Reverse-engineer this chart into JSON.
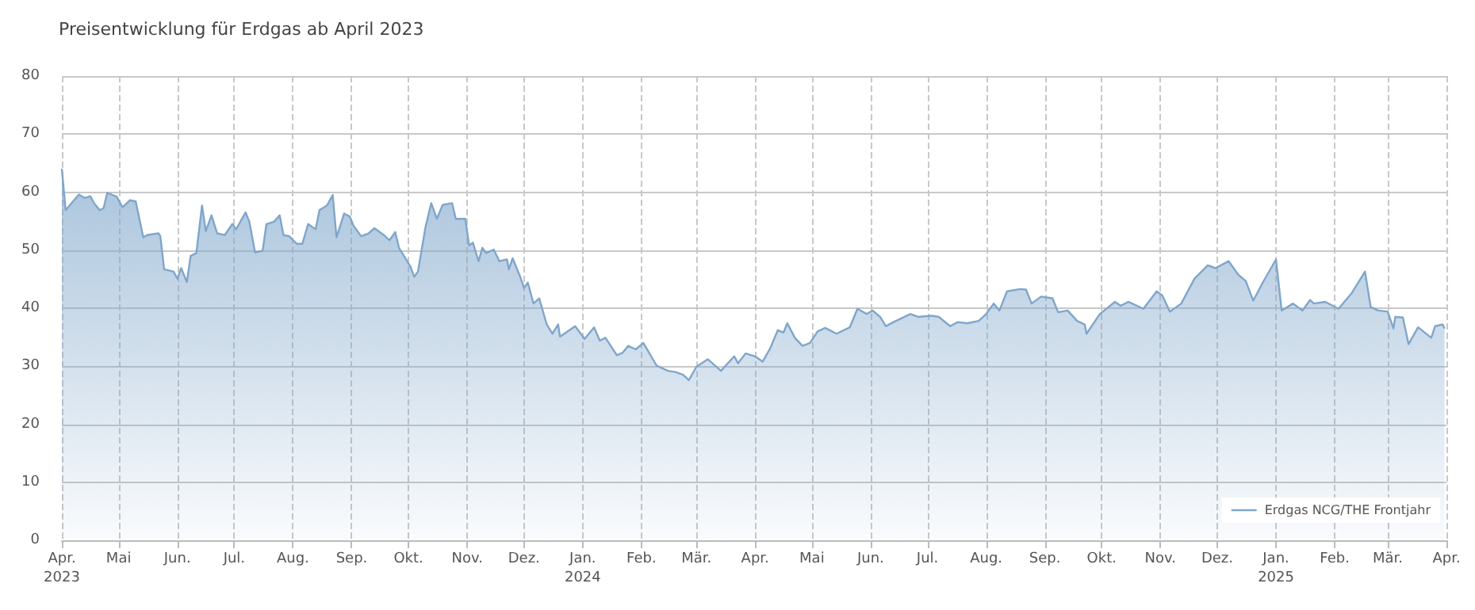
{
  "chart_data": {
    "type": "area",
    "title": "Preisentwicklung für Erdgas ab April 2023",
    "x": [
      "2023-04-01",
      "2023-04-03",
      "2023-04-10",
      "2023-04-13",
      "2023-04-16",
      "2023-04-18",
      "2023-04-21",
      "2023-04-23",
      "2023-04-25",
      "2023-04-30",
      "2023-05-03",
      "2023-05-07",
      "2023-05-10",
      "2023-05-14",
      "2023-05-16",
      "2023-05-22",
      "2023-05-23",
      "2023-05-25",
      "2023-05-30",
      "2023-06-01",
      "2023-06-03",
      "2023-06-06",
      "2023-06-08",
      "2023-06-11",
      "2023-06-14",
      "2023-06-16",
      "2023-06-19",
      "2023-06-22",
      "2023-06-26",
      "2023-06-30",
      "2023-07-02",
      "2023-07-07",
      "2023-07-09",
      "2023-07-12",
      "2023-07-16",
      "2023-07-18",
      "2023-07-22",
      "2023-07-25",
      "2023-07-27",
      "2023-07-30",
      "2023-08-03",
      "2023-08-06",
      "2023-08-09",
      "2023-08-13",
      "2023-08-15",
      "2023-08-19",
      "2023-08-22",
      "2023-08-24",
      "2023-08-28",
      "2023-08-31",
      "2023-09-02",
      "2023-09-06",
      "2023-09-10",
      "2023-09-13",
      "2023-09-18",
      "2023-09-21",
      "2023-09-24",
      "2023-09-26",
      "2023-10-02",
      "2023-10-04",
      "2023-10-06",
      "2023-10-10",
      "2023-10-13",
      "2023-10-16",
      "2023-10-19",
      "2023-10-24",
      "2023-10-26",
      "2023-10-31",
      "2023-11-02",
      "2023-11-04",
      "2023-11-07",
      "2023-11-09",
      "2023-11-11",
      "2023-11-15",
      "2023-11-18",
      "2023-11-22",
      "2023-11-23",
      "2023-11-25",
      "2023-11-29",
      "2023-12-01",
      "2023-12-03",
      "2023-12-06",
      "2023-12-09",
      "2023-12-13",
      "2023-12-16",
      "2023-12-19",
      "2023-12-20",
      "2023-12-28",
      "2024-01-02",
      "2024-01-07",
      "2024-01-10",
      "2024-01-13",
      "2024-01-19",
      "2024-01-22",
      "2024-01-25",
      "2024-01-29",
      "2024-02-02",
      "2024-02-09",
      "2024-02-15",
      "2024-02-19",
      "2024-02-23",
      "2024-02-26",
      "2024-03-01",
      "2024-03-07",
      "2024-03-14",
      "2024-03-17",
      "2024-03-21",
      "2024-03-23",
      "2024-03-27",
      "2024-04-01",
      "2024-04-05",
      "2024-04-09",
      "2024-04-13",
      "2024-04-16",
      "2024-04-18",
      "2024-04-22",
      "2024-04-26",
      "2024-04-30",
      "2024-05-04",
      "2024-05-08",
      "2024-05-14",
      "2024-05-21",
      "2024-05-25",
      "2024-05-30",
      "2024-06-02",
      "2024-06-06",
      "2024-06-09",
      "2024-06-13",
      "2024-06-22",
      "2024-06-26",
      "2024-07-03",
      "2024-07-07",
      "2024-07-13",
      "2024-07-17",
      "2024-07-22",
      "2024-07-28",
      "2024-08-01",
      "2024-08-05",
      "2024-08-08",
      "2024-08-12",
      "2024-08-19",
      "2024-08-22",
      "2024-08-25",
      "2024-08-30",
      "2024-09-05",
      "2024-09-08",
      "2024-09-13",
      "2024-09-18",
      "2024-09-22",
      "2024-09-23",
      "2024-09-30",
      "2024-10-08",
      "2024-10-11",
      "2024-10-15",
      "2024-10-23",
      "2024-10-30",
      "2024-11-02",
      "2024-11-06",
      "2024-11-12",
      "2024-11-19",
      "2024-11-26",
      "2024-11-30",
      "2024-12-07",
      "2024-12-12",
      "2024-12-16",
      "2024-12-20",
      "2024-12-25",
      "2025-01-01",
      "2025-01-04",
      "2025-01-10",
      "2025-01-15",
      "2025-01-19",
      "2025-01-21",
      "2025-01-27",
      "2025-02-03",
      "2025-02-10",
      "2025-02-17",
      "2025-02-20",
      "2025-02-24",
      "2025-03-01",
      "2025-03-04",
      "2025-03-05",
      "2025-03-09",
      "2025-03-12",
      "2025-03-17",
      "2025-03-24",
      "2025-03-26",
      "2025-03-30",
      "2025-03-31"
    ],
    "series": [
      {
        "name": "Erdgas NCG/THE Frontjahr",
        "color": "#7fa6cb",
        "values": [
          64.0,
          56.9,
          59.6,
          59.0,
          59.3,
          58.1,
          56.9,
          57.2,
          59.9,
          59.2,
          57.4,
          58.6,
          58.4,
          52.2,
          52.6,
          52.9,
          52.4,
          46.7,
          46.3,
          45.1,
          46.9,
          44.5,
          49.0,
          49.5,
          57.7,
          53.3,
          56.0,
          52.9,
          52.6,
          54.5,
          53.6,
          56.5,
          54.9,
          49.6,
          49.9,
          54.5,
          54.9,
          56.0,
          52.6,
          52.4,
          51.1,
          51.1,
          54.5,
          53.6,
          56.9,
          57.7,
          59.5,
          52.2,
          56.3,
          55.8,
          54.2,
          52.4,
          52.9,
          53.8,
          52.6,
          51.7,
          53.1,
          50.4,
          47.2,
          45.4,
          46.3,
          54.0,
          58.1,
          55.4,
          57.8,
          58.1,
          55.4,
          55.4,
          50.8,
          51.3,
          48.1,
          50.4,
          49.5,
          50.1,
          48.1,
          48.4,
          46.7,
          48.6,
          45.4,
          43.5,
          44.4,
          40.8,
          41.7,
          37.2,
          35.6,
          37.2,
          35.1,
          36.9,
          34.7,
          36.7,
          34.4,
          34.9,
          31.9,
          32.3,
          33.5,
          32.9,
          34.0,
          30.1,
          29.2,
          29.0,
          28.5,
          27.6,
          29.9,
          31.2,
          29.2,
          30.3,
          31.7,
          30.5,
          32.2,
          31.7,
          30.8,
          33.1,
          36.2,
          35.8,
          37.4,
          34.9,
          33.5,
          34.0,
          36.0,
          36.6,
          35.6,
          36.7,
          39.9,
          39.0,
          39.6,
          38.5,
          36.9,
          37.6,
          39.0,
          38.5,
          38.7,
          38.5,
          36.9,
          37.6,
          37.4,
          37.8,
          39.0,
          40.8,
          39.6,
          42.9,
          43.3,
          43.2,
          40.8,
          42.0,
          41.7,
          39.3,
          39.6,
          37.8,
          37.2,
          35.6,
          39.0,
          41.1,
          40.4,
          41.1,
          39.9,
          42.9,
          42.2,
          39.4,
          40.8,
          45.1,
          47.4,
          46.9,
          48.1,
          45.8,
          44.7,
          41.3,
          44.4,
          48.4,
          39.6,
          40.8,
          39.6,
          41.4,
          40.8,
          41.1,
          39.9,
          42.6,
          46.3,
          40.2,
          39.6,
          39.4,
          36.5,
          38.5,
          38.4,
          33.8,
          36.7,
          34.9,
          36.9,
          37.2,
          36.5
        ]
      }
    ],
    "xlim": [
      "2023-04-01",
      "2025-04-01"
    ],
    "xticks": [
      {
        "value": "2023-04-01",
        "label": "Apr.\n2023"
      },
      {
        "value": "2023-05-01",
        "label": "Mai"
      },
      {
        "value": "2023-06-01",
        "label": "Jun."
      },
      {
        "value": "2023-07-01",
        "label": "Jul."
      },
      {
        "value": "2023-08-01",
        "label": "Aug."
      },
      {
        "value": "2023-09-01",
        "label": "Sep."
      },
      {
        "value": "2023-10-01",
        "label": "Okt."
      },
      {
        "value": "2023-11-01",
        "label": "Nov."
      },
      {
        "value": "2023-12-01",
        "label": "Dez."
      },
      {
        "value": "2024-01-01",
        "label": "Jan.\n2024"
      },
      {
        "value": "2024-02-01",
        "label": "Feb."
      },
      {
        "value": "2024-03-01",
        "label": "Mär."
      },
      {
        "value": "2024-04-01",
        "label": "Apr."
      },
      {
        "value": "2024-05-01",
        "label": "Mai"
      },
      {
        "value": "2024-06-01",
        "label": "Jun."
      },
      {
        "value": "2024-07-01",
        "label": "Jul."
      },
      {
        "value": "2024-08-01",
        "label": "Aug."
      },
      {
        "value": "2024-09-01",
        "label": "Sep."
      },
      {
        "value": "2024-10-01",
        "label": "Okt."
      },
      {
        "value": "2024-11-01",
        "label": "Nov."
      },
      {
        "value": "2024-12-01",
        "label": "Dez."
      },
      {
        "value": "2025-01-01",
        "label": "Jan.\n2025"
      },
      {
        "value": "2025-02-01",
        "label": "Feb."
      },
      {
        "value": "2025-03-01",
        "label": "Mär."
      },
      {
        "value": "2025-04-01",
        "label": "Apr."
      }
    ],
    "ylim": [
      0,
      80
    ],
    "yticks": [
      0,
      10,
      20,
      30,
      40,
      50,
      60,
      70,
      80
    ],
    "grid": true,
    "legend": "bottom right",
    "marker": "none",
    "line_style": "solid"
  }
}
